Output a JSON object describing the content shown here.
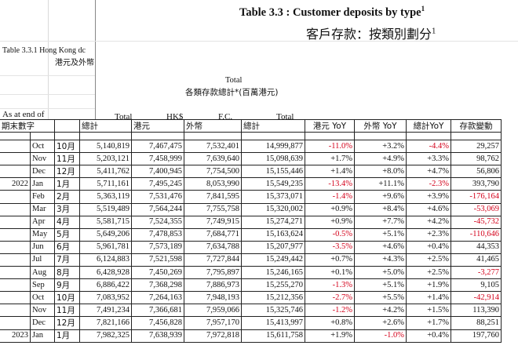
{
  "title_en": "Table 3.3 :   Customer deposits by type",
  "title_sup": "1",
  "title_zh": "客戶存款：按類別劃分",
  "subtitle_en": "Table 3.3.1  Hong Kong dc",
  "subtitle_zh": "港元及外幣",
  "total_en": "Total",
  "total_zh": "各類存款總計*(百萬港元)",
  "as_at_en": "As at end of",
  "as_at_zh": "期末數字",
  "col_top": [
    "Total",
    "HK$",
    "F.C.",
    "Total"
  ],
  "col_heads": [
    "總計",
    "港元",
    "外幣",
    "總計",
    "港元 YoY",
    "外幣 YoY",
    "總計YoY",
    "存款變動"
  ],
  "rows": [
    {
      "year": "",
      "month": "Oct",
      "month_zh": "10月",
      "total": "5,140,819",
      "hkd": "7,467,475",
      "fc": "7,532,401",
      "total2": "14,999,877",
      "hk_yoy": "-11.0%",
      "fc_yoy": "+3.2%",
      "tot_yoy": "-4.4%",
      "change": "29,257"
    },
    {
      "year": "",
      "month": "Nov",
      "month_zh": "11月",
      "total": "5,203,121",
      "hkd": "7,458,999",
      "fc": "7,639,640",
      "total2": "15,098,639",
      "hk_yoy": "+1.7%",
      "fc_yoy": "+4.9%",
      "tot_yoy": "+3.3%",
      "change": "98,762"
    },
    {
      "year": "",
      "month": "Dec",
      "month_zh": "12月",
      "total": "5,411,762",
      "hkd": "7,400,945",
      "fc": "7,754,500",
      "total2": "15,155,446",
      "hk_yoy": "+1.4%",
      "fc_yoy": "+8.0%",
      "tot_yoy": "+4.7%",
      "change": "56,806"
    },
    {
      "year": "2022",
      "month": "Jan",
      "month_zh": "1月",
      "total": "5,711,161",
      "hkd": "7,495,245",
      "fc": "8,053,990",
      "total2": "15,549,235",
      "hk_yoy": "-13.4%",
      "fc_yoy": "+11.1%",
      "tot_yoy": "-2.3%",
      "change": "393,790"
    },
    {
      "year": "",
      "month": "Feb",
      "month_zh": "2月",
      "total": "5,363,119",
      "hkd": "7,531,476",
      "fc": "7,841,595",
      "total2": "15,373,071",
      "hk_yoy": "-1.4%",
      "fc_yoy": "+9.6%",
      "tot_yoy": "+3.9%",
      "change": "-176,164"
    },
    {
      "year": "",
      "month": "Mar",
      "month_zh": "3月",
      "total": "5,519,489",
      "hkd": "7,564,244",
      "fc": "7,755,758",
      "total2": "15,320,002",
      "hk_yoy": "+0.9%",
      "fc_yoy": "+8.4%",
      "tot_yoy": "+4.6%",
      "change": "-53,069"
    },
    {
      "year": "",
      "month": "Apr",
      "month_zh": "4月",
      "total": "5,581,715",
      "hkd": "7,524,355",
      "fc": "7,749,915",
      "total2": "15,274,271",
      "hk_yoy": "+0.9%",
      "fc_yoy": "+7.7%",
      "tot_yoy": "+4.2%",
      "change": "-45,732"
    },
    {
      "year": "",
      "month": "May",
      "month_zh": "5月",
      "total": "5,649,206",
      "hkd": "7,478,853",
      "fc": "7,684,771",
      "total2": "15,163,624",
      "hk_yoy": "-0.5%",
      "fc_yoy": "+5.1%",
      "tot_yoy": "+2.3%",
      "change": "-110,646"
    },
    {
      "year": "",
      "month": "Jun",
      "month_zh": "6月",
      "total": "5,961,781",
      "hkd": "7,573,189",
      "fc": "7,634,788",
      "total2": "15,207,977",
      "hk_yoy": "-3.5%",
      "fc_yoy": "+4.6%",
      "tot_yoy": "+0.4%",
      "change": "44,353"
    },
    {
      "year": "",
      "month": "Jul",
      "month_zh": "7月",
      "total": "6,124,883",
      "hkd": "7,521,598",
      "fc": "7,727,844",
      "total2": "15,249,442",
      "hk_yoy": "+0.7%",
      "fc_yoy": "+4.3%",
      "tot_yoy": "+2.5%",
      "change": "41,465"
    },
    {
      "year": "",
      "month": "Aug",
      "month_zh": "8月",
      "total": "6,428,928",
      "hkd": "7,450,269",
      "fc": "7,795,897",
      "total2": "15,246,165",
      "hk_yoy": "+0.1%",
      "fc_yoy": "+5.0%",
      "tot_yoy": "+2.5%",
      "change": "-3,277"
    },
    {
      "year": "",
      "month": "Sep",
      "month_zh": "9月",
      "total": "6,886,422",
      "hkd": "7,368,298",
      "fc": "7,886,973",
      "total2": "15,255,270",
      "hk_yoy": "-1.3%",
      "fc_yoy": "+5.1%",
      "tot_yoy": "+1.9%",
      "change": "9,105"
    },
    {
      "year": "",
      "month": "Oct",
      "month_zh": "10月",
      "total": "7,083,952",
      "hkd": "7,264,163",
      "fc": "7,948,193",
      "total2": "15,212,356",
      "hk_yoy": "-2.7%",
      "fc_yoy": "+5.5%",
      "tot_yoy": "+1.4%",
      "change": "-42,914"
    },
    {
      "year": "",
      "month": "Nov",
      "month_zh": "11月",
      "total": "7,491,234",
      "hkd": "7,366,681",
      "fc": "7,959,066",
      "total2": "15,325,746",
      "hk_yoy": "-1.2%",
      "fc_yoy": "+4.2%",
      "tot_yoy": "+1.5%",
      "change": "113,390"
    },
    {
      "year": "",
      "month": "Dec",
      "month_zh": "12月",
      "total": "7,821,166",
      "hkd": "7,456,828",
      "fc": "7,957,170",
      "total2": "15,413,997",
      "hk_yoy": "+0.8%",
      "fc_yoy": "+2.6%",
      "tot_yoy": "+1.7%",
      "change": "88,251"
    },
    {
      "year": "2023",
      "month": "Jan",
      "month_zh": "1月",
      "total": "7,982,325",
      "hkd": "7,638,939",
      "fc": "7,972,818",
      "total2": "15,611,758",
      "hk_yoy": "+1.9%",
      "fc_yoy": "-1.0%",
      "tot_yoy": "+0.4%",
      "change": "197,760"
    }
  ],
  "colors": {
    "negative": "#d4001a",
    "grid": "#d9d9d9",
    "border": "#222222"
  }
}
